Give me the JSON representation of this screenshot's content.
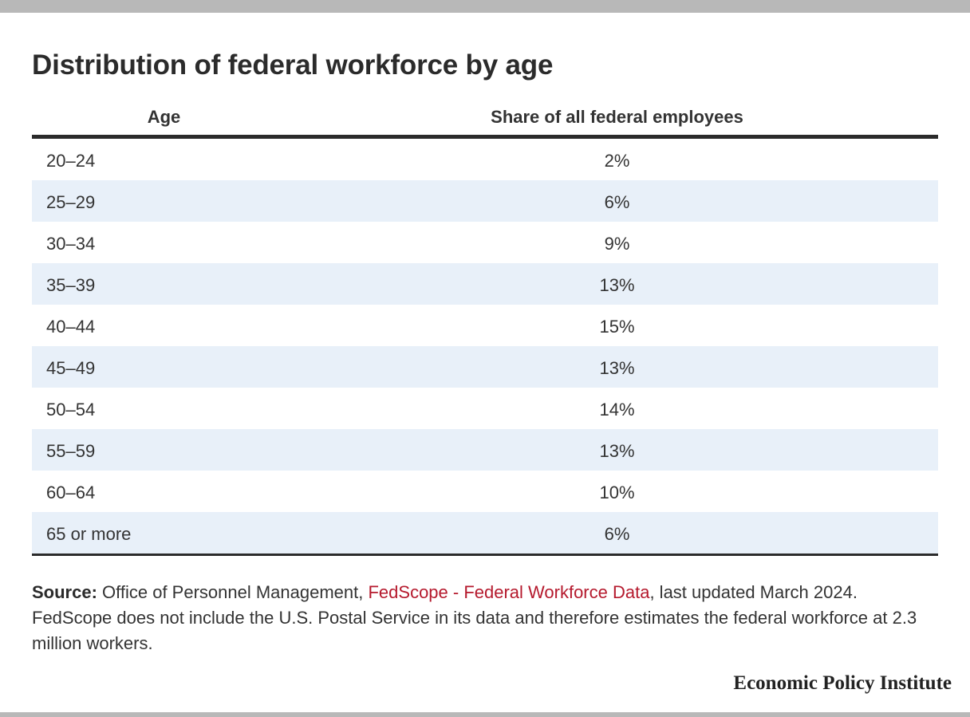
{
  "chart_data": {
    "type": "table",
    "title": "Distribution of federal workforce by age",
    "columns": [
      "Age",
      "Share of all federal employees"
    ],
    "rows": [
      {
        "age": "20–24",
        "share": "2%"
      },
      {
        "age": "25–29",
        "share": "6%"
      },
      {
        "age": "30–34",
        "share": "9%"
      },
      {
        "age": "35–39",
        "share": "13%"
      },
      {
        "age": "40–44",
        "share": "15%"
      },
      {
        "age": "45–49",
        "share": "13%"
      },
      {
        "age": "50–54",
        "share": "14%"
      },
      {
        "age": "55–59",
        "share": "13%"
      },
      {
        "age": "60–64",
        "share": "10%"
      },
      {
        "age": "65 or more",
        "share": "6%"
      }
    ],
    "categories": [
      "20–24",
      "25–29",
      "30–34",
      "35–39",
      "40–44",
      "45–49",
      "50–54",
      "55–59",
      "60–64",
      "65 or more"
    ],
    "values": [
      2,
      6,
      9,
      13,
      15,
      13,
      14,
      13,
      10,
      6
    ]
  },
  "source": {
    "label": "Source:",
    "text_before": " Office of Personnel Management, ",
    "link_text": "FedScope - Federal Workforce Data",
    "text_after": ", last updated March 2024. FedScope does not include the U.S. Postal Service in its data and therefore estimates the federal workforce at 2.3 million workers."
  },
  "brand": "Economic Policy Institute",
  "colors": {
    "accent_link": "#b5192d",
    "row_stripe": "#e8f0f9",
    "frame_bar": "#b8b8b8",
    "rule": "#2b2b2b"
  }
}
